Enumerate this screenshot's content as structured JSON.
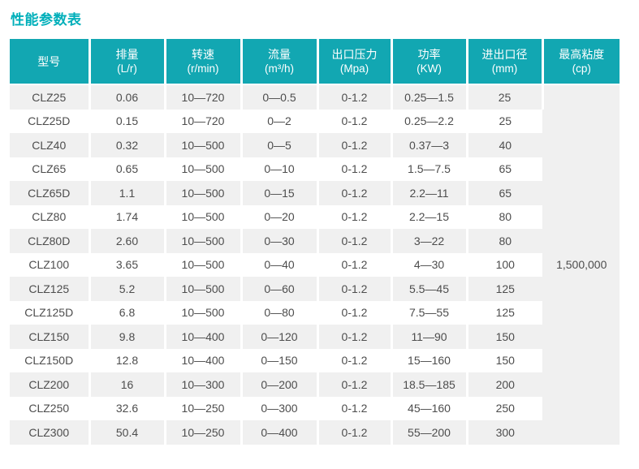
{
  "page": {
    "title": "性能参数表"
  },
  "colors": {
    "title_teal": "#00afba",
    "header_teal": "#12a7b2",
    "header_text": "#ffffff",
    "stripe_gray": "#f0f0f0",
    "body_text": "#4d4d4d"
  },
  "table": {
    "columns": [
      {
        "key": "model",
        "name": "型号",
        "unit": ""
      },
      {
        "key": "displacement",
        "name": "排量",
        "unit": "(L/r)"
      },
      {
        "key": "speed",
        "name": "转速",
        "unit": "(r/min)"
      },
      {
        "key": "flow",
        "name": "流量",
        "unit": "(m³/h)"
      },
      {
        "key": "outlet-pressure",
        "name": "出口压力",
        "unit": "(Mpa)"
      },
      {
        "key": "power",
        "name": "功率",
        "unit": "(KW)"
      },
      {
        "key": "port-diameter",
        "name": "进出口径",
        "unit": "(mm)"
      },
      {
        "key": "max-viscosity",
        "name": "最高粘度",
        "unit": "(cp)"
      }
    ],
    "rows": [
      [
        "CLZ25",
        "0.06",
        "10—720",
        "0—0.5",
        "0-1.2",
        "0.25—1.5",
        "25"
      ],
      [
        "CLZ25D",
        "0.15",
        "10—720",
        "0—2",
        "0-1.2",
        "0.25—2.2",
        "25"
      ],
      [
        "CLZ40",
        "0.32",
        "10—500",
        "0—5",
        "0-1.2",
        "0.37—3",
        "40"
      ],
      [
        "CLZ65",
        "0.65",
        "10—500",
        "0—10",
        "0-1.2",
        "1.5—7.5",
        "65"
      ],
      [
        "CLZ65D",
        "1.1",
        "10—500",
        "0—15",
        "0-1.2",
        "2.2—11",
        "65"
      ],
      [
        "CLZ80",
        "1.74",
        "10—500",
        "0—20",
        "0-1.2",
        "2.2—15",
        "80"
      ],
      [
        "CLZ80D",
        "2.60",
        "10—500",
        "0—30",
        "0-1.2",
        "3—22",
        "80"
      ],
      [
        "CLZ100",
        "3.65",
        "10—500",
        "0—40",
        "0-1.2",
        "4—30",
        "100"
      ],
      [
        "CLZ125",
        "5.2",
        "10—500",
        "0—60",
        "0-1.2",
        "5.5—45",
        "125"
      ],
      [
        "CLZ125D",
        "6.8",
        "10—500",
        "0—80",
        "0-1.2",
        "7.5—55",
        "125"
      ],
      [
        "CLZ150",
        "9.8",
        "10—400",
        "0—120",
        "0-1.2",
        "11—90",
        "150"
      ],
      [
        "CLZ150D",
        "12.8",
        "10—400",
        "0—150",
        "0-1.2",
        "15—160",
        "150"
      ],
      [
        "CLZ200",
        "16",
        "10—300",
        "0—200",
        "0-1.2",
        "18.5—185",
        "200"
      ],
      [
        "CLZ250",
        "32.6",
        "10—250",
        "0—300",
        "0-1.2",
        "45—160",
        "250"
      ],
      [
        "CLZ300",
        "50.4",
        "10—250",
        "0—400",
        "0-1.2",
        "55—200",
        "300"
      ]
    ],
    "merged_max_viscosity": "1,500,000"
  }
}
